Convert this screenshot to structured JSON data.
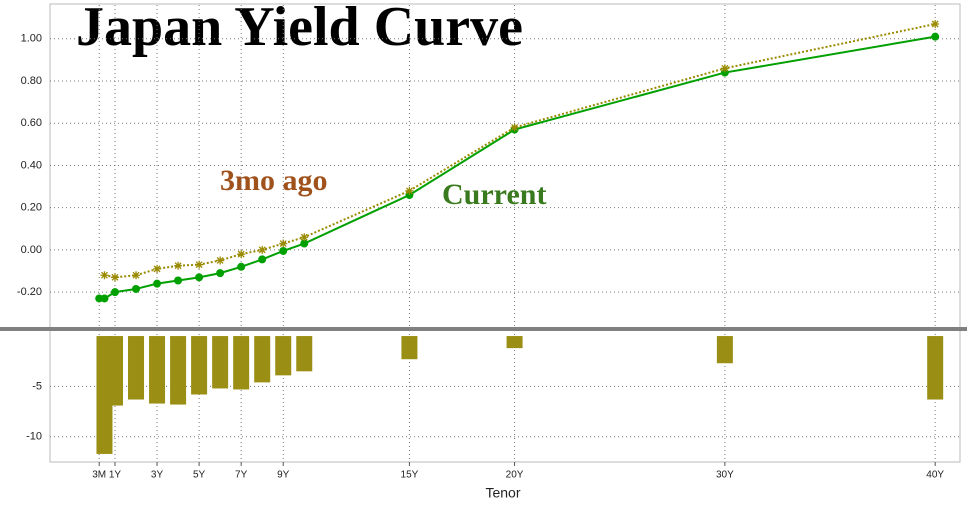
{
  "chart_data": [
    {
      "type": "line",
      "title": "Japan Yield Curve",
      "annotations": [
        "3mo ago",
        "Current"
      ],
      "x": [
        0.25,
        0.5,
        1,
        2,
        3,
        4,
        5,
        6,
        7,
        8,
        9,
        10,
        15,
        20,
        30,
        40
      ],
      "series": [
        {
          "name": "Current",
          "color": "#00a000",
          "marker": "circle",
          "dash": false,
          "values": [
            -0.23,
            -0.23,
            -0.2,
            -0.185,
            -0.16,
            -0.145,
            -0.13,
            -0.11,
            -0.08,
            -0.045,
            -0.005,
            0.03,
            0.26,
            0.57,
            0.84,
            1.01
          ]
        },
        {
          "name": "3mo ago",
          "color": "#9a8a00",
          "marker": "star",
          "dash": true,
          "values": [
            null,
            -0.12,
            -0.13,
            -0.12,
            -0.09,
            -0.075,
            -0.07,
            -0.05,
            -0.02,
            0.0,
            0.03,
            0.06,
            0.28,
            0.58,
            0.86,
            1.07
          ]
        }
      ],
      "xlim": [
        -2.09,
        41.18
      ],
      "ylim": [
        -0.37,
        1.16
      ],
      "yticks": [
        {
          "value": -0.2,
          "label": "-0.20"
        },
        {
          "value": 0,
          "label": "0.00"
        },
        {
          "value": 0.2,
          "label": "0.20"
        },
        {
          "value": 0.4,
          "label": "0.40"
        },
        {
          "value": 0.6,
          "label": "0.60"
        },
        {
          "value": 0.8,
          "label": "0.80"
        },
        {
          "value": 1.0,
          "label": "1.00"
        }
      ],
      "xticks": [
        0.25,
        1,
        3,
        5,
        7,
        9,
        15,
        20,
        30,
        40
      ],
      "grid": true
    },
    {
      "type": "bar",
      "x_label": "Tenor",
      "color": "#9a8f14",
      "x": [
        0.25,
        0.5,
        1,
        2,
        3,
        4,
        5,
        6,
        7,
        8,
        9,
        10,
        15,
        20,
        30,
        40
      ],
      "values": [
        null,
        -11.7,
        -6.9,
        -6.3,
        -6.7,
        -6.8,
        -5.8,
        -5.2,
        -5.3,
        -4.6,
        -3.9,
        -3.5,
        -2.3,
        -1.2,
        -2.7,
        -6.3
      ],
      "xlim": [
        -2.09,
        41.18
      ],
      "ylim": [
        -12.5,
        0.6
      ],
      "yticks": [
        -10,
        -5
      ],
      "xticks": [
        {
          "value": 0.25,
          "label": "3M"
        },
        {
          "value": 1,
          "label": "1Y"
        },
        {
          "value": 3,
          "label": "3Y"
        },
        {
          "value": 5,
          "label": "5Y"
        },
        {
          "value": 7,
          "label": "7Y"
        },
        {
          "value": 9,
          "label": "9Y"
        },
        {
          "value": 15,
          "label": "15Y"
        },
        {
          "value": 20,
          "label": "20Y"
        },
        {
          "value": 30,
          "label": "30Y"
        },
        {
          "value": 40,
          "label": "40Y"
        }
      ],
      "grid": true
    }
  ]
}
